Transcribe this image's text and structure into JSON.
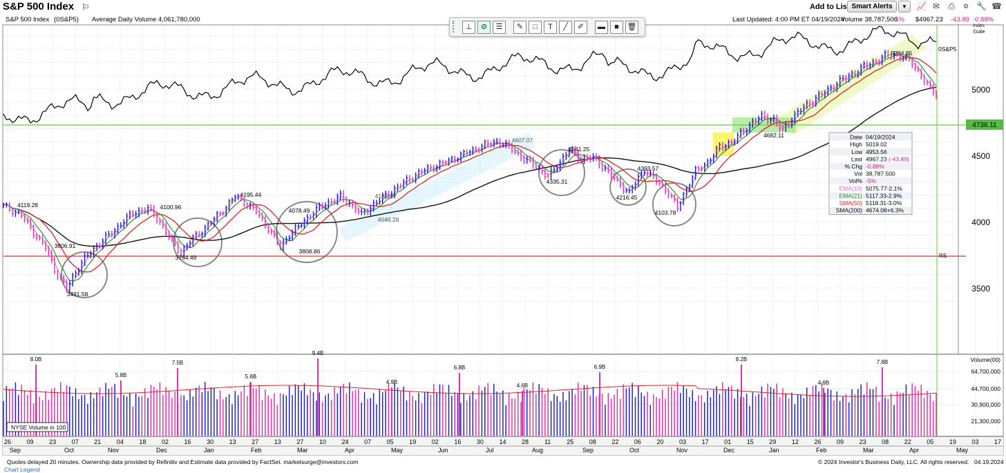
{
  "header": {
    "title": "S&P 500 Index",
    "add_to_list": "Add to List:",
    "smart_alerts": "Smart Alerts",
    "icons": [
      "chart-icon",
      "email-icon",
      "print-icon",
      "wrench-icon",
      "phone-icon"
    ]
  },
  "infobar": {
    "name": "S&P 500 Index",
    "symbol": "(0S&P5)",
    "avg_vol": "Average Daily Volume 4,061,780,000",
    "updated": "Last Updated: 4:00 PM ET 04/19/2024",
    "volume": "Volume 38,787,500",
    "vol_pct": "-5%",
    "price": "$4967.23",
    "change": "-43.89",
    "change_pct": "-0.88%",
    "index_scale_1": "Index",
    "index_scale_2": "Scale"
  },
  "toolbar": {
    "tools": [
      "crosshair-icon",
      "trend-tool-icon",
      "list-icon",
      "paint-icon",
      "rect-icon",
      "text-icon",
      "line-icon",
      "pen-icon",
      "hline-icon",
      "fill-icon",
      "trash-icon"
    ]
  },
  "chart_data": {
    "type": "line",
    "title": "S&P 500 Index",
    "y_axis": {
      "min": 3300,
      "max": 5450,
      "ticks": [
        3500,
        4000,
        4500,
        5000
      ]
    },
    "x_axis": {
      "days": [
        "26",
        "09",
        "23",
        "07",
        "21",
        "04",
        "18",
        "02",
        "16",
        "30",
        "13",
        "27",
        "13",
        "27",
        "10",
        "24",
        "07",
        "05",
        "19",
        "02",
        "16",
        "30",
        "14",
        "28",
        "11",
        "25",
        "08",
        "22",
        "06",
        "20",
        "03",
        "17",
        "01",
        "15",
        "29",
        "12",
        "26",
        "09",
        "23",
        "08",
        "22",
        "05",
        "19",
        "03",
        "17"
      ],
      "months": [
        "Sep",
        "Oct",
        "Nov",
        "Dec",
        "Jan",
        "Feb",
        "Mar",
        "Apr",
        "May",
        "Jun",
        "Jul",
        "Aug",
        "Sep",
        "Oct",
        "Nov",
        "Dec",
        "Jan",
        "Feb",
        "Mar",
        "Apr",
        "May"
      ]
    },
    "price_series": [
      [
        0,
        4119.28
      ],
      [
        6,
        4050
      ],
      [
        10,
        3920
      ],
      [
        14,
        3806.91
      ],
      [
        17,
        3640
      ],
      [
        21,
        3491.58
      ],
      [
        24,
        3620
      ],
      [
        27,
        3720
      ],
      [
        30,
        3790
      ],
      [
        33,
        3860
      ],
      [
        37,
        3930
      ],
      [
        40,
        4010
      ],
      [
        44,
        4070
      ],
      [
        48,
        4100.96
      ],
      [
        52,
        4000
      ],
      [
        56,
        3850
      ],
      [
        59,
        3764.49
      ],
      [
        62,
        3850
      ],
      [
        66,
        3930
      ],
      [
        70,
        4020
      ],
      [
        74,
        4110
      ],
      [
        77,
        4195.44
      ],
      [
        80,
        4150
      ],
      [
        84,
        4078.49
      ],
      [
        88,
        3950
      ],
      [
        92,
        3808.86
      ],
      [
        95,
        3900
      ],
      [
        98,
        3960
      ],
      [
        102,
        4050
      ],
      [
        106,
        4120
      ],
      [
        112,
        4186.92
      ],
      [
        116,
        4120
      ],
      [
        119,
        4048.28
      ],
      [
        123,
        4130
      ],
      [
        128,
        4210
      ],
      [
        134,
        4310
      ],
      [
        140,
        4390
      ],
      [
        146,
        4440
      ],
      [
        152,
        4500
      ],
      [
        158,
        4560
      ],
      [
        164,
        4607.07
      ],
      [
        169,
        4550
      ],
      [
        173,
        4470
      ],
      [
        177,
        4420
      ],
      [
        181,
        4335.31
      ],
      [
        184,
        4420
      ],
      [
        188,
        4541.25
      ],
      [
        192,
        4470
      ],
      [
        196,
        4480
      ],
      [
        200,
        4400
      ],
      [
        204,
        4300
      ],
      [
        208,
        4216.45
      ],
      [
        211,
        4330
      ],
      [
        213,
        4393.57
      ],
      [
        217,
        4310
      ],
      [
        221,
        4220
      ],
      [
        224,
        4103.78
      ],
      [
        227,
        4250
      ],
      [
        230,
        4380
      ],
      [
        234,
        4450
      ],
      [
        238,
        4560
      ],
      [
        242,
        4600
      ],
      [
        245,
        4660
      ],
      [
        249,
        4750
      ],
      [
        252,
        4790
      ],
      [
        256,
        4770
      ],
      [
        259,
        4682.11
      ],
      [
        262,
        4780
      ],
      [
        266,
        4860
      ],
      [
        270,
        4930
      ],
      [
        274,
        4990
      ],
      [
        278,
        5060
      ],
      [
        282,
        5110
      ],
      [
        286,
        5170
      ],
      [
        290,
        5210
      ],
      [
        293,
        5250
      ],
      [
        296,
        5264.85
      ],
      [
        299,
        5240
      ],
      [
        302,
        5200
      ],
      [
        305,
        5100
      ],
      [
        308,
        5000
      ],
      [
        310,
        4967.23
      ]
    ],
    "price_labels": [
      "4119.28",
      "3806.91",
      "3491.58",
      "4100.96",
      "3764.49",
      "4195.44",
      "4078.49",
      "3808.86",
      "4186.92",
      "4048.28",
      "4607.07",
      "4541.25",
      "4335.31",
      "4393.57",
      "4216.45",
      "4103.78",
      "4682.11",
      "5264.85"
    ],
    "level_lines": [
      {
        "name": "4736.11",
        "value": 4736.11,
        "color": "#66cc33"
      },
      {
        "name": "RS",
        "value": 3745,
        "color": "#dd3333"
      }
    ],
    "series": [
      {
        "name": "0S&P5",
        "color": "#000000"
      },
      {
        "name": "SMA(50)",
        "color": "#dd2222"
      },
      {
        "name": "SMA(200)",
        "color": "#000000"
      },
      {
        "name": "EMA(21)",
        "color": "#228822"
      }
    ],
    "volume": {
      "label": "NYSE Volume in 100",
      "axis_title": "Volume(00)",
      "ticks": [
        "64,700,000",
        "44,700,000",
        "30,900,000",
        "21,300,000"
      ],
      "bar_labels": [
        "8.0B",
        "5.8B",
        "7.5B",
        "5.6B",
        "9.4B",
        "4.9B",
        "6.8B",
        "4.6B",
        "6.9B",
        "8.2B",
        "4.9B",
        "7.8B"
      ]
    }
  },
  "databox": {
    "rows": [
      {
        "label": "Date",
        "value": "04/19/2024"
      },
      {
        "label": "High",
        "value": "5019.02"
      },
      {
        "label": "Low",
        "value": "4953.56"
      },
      {
        "label": "Last",
        "value": "4967.23",
        "extra": "(-43.89)"
      },
      {
        "label": "% Chg",
        "value": "-0.88%"
      },
      {
        "label": "Vol",
        "value": "38,787,500"
      },
      {
        "label": "Vol%",
        "value": "-5%"
      },
      {
        "label": "EMA(10)",
        "value": "5075.77-2.1%"
      },
      {
        "label": "EMA(21)",
        "value": "5117.33-2.9%"
      },
      {
        "label": "SMA(50)",
        "value": "5118.31-3.0%"
      },
      {
        "label": "SMA(200)",
        "value": "4674.08+6.3%"
      }
    ]
  },
  "footer": {
    "left": "Quotes delayed 20 minutes. Ownership data provided by Refinitiv and Estimate data provided by FactSet. marketsurge@investors.com",
    "right": "© 2024 Investor's Business Daily, LLC. All rights reserved.",
    "date": "04.19.2024",
    "legend_link": "Chart Legend"
  }
}
